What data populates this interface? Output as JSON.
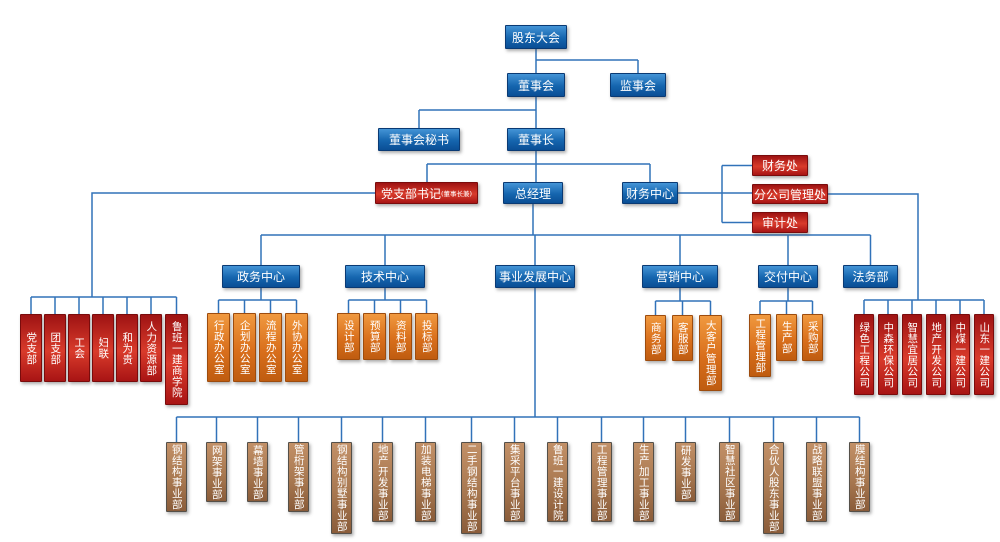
{
  "colors": {
    "background": "#ffffff",
    "connector": "#3172b9",
    "blue_top": "#4494d6",
    "blue_mid": "#1565ae",
    "blue_bottom": "#0a4e95",
    "blue_border": "#0a3a74",
    "red_top": "#9e1313",
    "red_mid": "#d93b2b",
    "red_bottom": "#a81414",
    "red_border": "#7a0c0c",
    "orange_top": "#f0993f",
    "orange_mid": "#d96f1c",
    "orange_bottom": "#bf5c10",
    "orange_border": "#9d4c0e",
    "brown_top": "#c29067",
    "brown_mid": "#a87850",
    "brown_bottom": "#8a5c3a",
    "brown_border": "#555049"
  },
  "nodes": [
    {
      "id": "shareholders-meeting",
      "label": "股东大会",
      "type": "blue",
      "parent": null
    },
    {
      "id": "board-of-directors",
      "label": "董事会",
      "type": "blue",
      "parent": "shareholders-meeting"
    },
    {
      "id": "supervisory-board",
      "label": "监事会",
      "type": "blue",
      "parent": "shareholders-meeting"
    },
    {
      "id": "board-secretary",
      "label": "董事会秘书",
      "type": "blue",
      "parent": "board-of-directors"
    },
    {
      "id": "chairman",
      "label": "董事长",
      "type": "blue",
      "parent": "board-of-directors"
    },
    {
      "id": "party-branch-secretary",
      "label": "党支部书记",
      "suffix": "(董事长兼)",
      "type": "red",
      "parent": "chairman"
    },
    {
      "id": "general-manager",
      "label": "总经理",
      "type": "blue",
      "parent": "chairman"
    },
    {
      "id": "finance-center",
      "label": "财务中心",
      "type": "blue",
      "parent": "chairman"
    },
    {
      "id": "finance-office",
      "label": "财务处",
      "type": "red",
      "parent": "finance-center"
    },
    {
      "id": "branch-company-mgmt-office",
      "label": "分公司管理处",
      "type": "red",
      "parent": "finance-center"
    },
    {
      "id": "audit-office",
      "label": "审计处",
      "type": "red",
      "parent": "finance-center"
    },
    {
      "id": "admin-center",
      "label": "政务中心",
      "type": "blue",
      "parent": "general-manager"
    },
    {
      "id": "tech-center",
      "label": "技术中心",
      "type": "blue",
      "parent": "general-manager"
    },
    {
      "id": "business-dev-center",
      "label": "事业发展中心",
      "type": "blue",
      "parent": "general-manager"
    },
    {
      "id": "marketing-center",
      "label": "营销中心",
      "type": "blue",
      "parent": "general-manager"
    },
    {
      "id": "delivery-center",
      "label": "交付中心",
      "type": "blue",
      "parent": "general-manager"
    },
    {
      "id": "legal-dept",
      "label": "法务部",
      "type": "blue",
      "parent": "general-manager"
    },
    {
      "id": "party-branch",
      "label": "党支部",
      "type": "red",
      "parent": "party-branch-secretary"
    },
    {
      "id": "youth-league-branch",
      "label": "团支部",
      "type": "red",
      "parent": "party-branch-secretary"
    },
    {
      "id": "labor-union",
      "label": "工会",
      "type": "red",
      "parent": "party-branch-secretary"
    },
    {
      "id": "womens-federation",
      "label": "妇联",
      "type": "red",
      "parent": "party-branch-secretary"
    },
    {
      "id": "heweigui-dept",
      "label": "和为贵",
      "type": "red",
      "parent": "party-branch-secretary"
    },
    {
      "id": "hr-dept",
      "label": "人力资源部",
      "type": "red",
      "parent": "party-branch-secretary"
    },
    {
      "id": "luban-business-school",
      "label": "鲁班一建商学院",
      "type": "red",
      "parent": "party-branch-secretary"
    },
    {
      "id": "admin-office",
      "label": "行政办公室",
      "type": "orange",
      "parent": "admin-center"
    },
    {
      "id": "planning-office",
      "label": "企划办公室",
      "type": "orange",
      "parent": "admin-center"
    },
    {
      "id": "process-office",
      "label": "流程办公室",
      "type": "orange",
      "parent": "admin-center"
    },
    {
      "id": "outsourcing-office",
      "label": "外协办公室",
      "type": "orange",
      "parent": "admin-center"
    },
    {
      "id": "design-dept",
      "label": "设计部",
      "type": "orange",
      "parent": "tech-center"
    },
    {
      "id": "budget-dept",
      "label": "预算部",
      "type": "orange",
      "parent": "tech-center"
    },
    {
      "id": "documentation-dept",
      "label": "资料部",
      "type": "orange",
      "parent": "tech-center"
    },
    {
      "id": "bidding-dept",
      "label": "投标部",
      "type": "orange",
      "parent": "tech-center"
    },
    {
      "id": "commerce-dept",
      "label": "商务部",
      "type": "orange",
      "parent": "marketing-center"
    },
    {
      "id": "customer-service-dept",
      "label": "客服部",
      "type": "orange",
      "parent": "marketing-center"
    },
    {
      "id": "key-account-mgmt-dept",
      "label": "大客户管理部",
      "type": "orange",
      "parent": "marketing-center"
    },
    {
      "id": "engineering-mgmt-dept",
      "label": "工程管理部",
      "type": "orange",
      "parent": "delivery-center"
    },
    {
      "id": "production-dept",
      "label": "生产部",
      "type": "orange",
      "parent": "delivery-center"
    },
    {
      "id": "procurement-dept",
      "label": "采购部",
      "type": "orange",
      "parent": "delivery-center"
    },
    {
      "id": "green-engineering-co",
      "label": "绿色工程公司",
      "type": "red",
      "parent": "branch-company-mgmt-office"
    },
    {
      "id": "zhongsen-env-protection-co",
      "label": "中森环保公司",
      "type": "red",
      "parent": "branch-company-mgmt-office"
    },
    {
      "id": "smart-living-co",
      "label": "智慧宜居公司",
      "type": "red",
      "parent": "branch-company-mgmt-office"
    },
    {
      "id": "real-estate-dev-co",
      "label": "地产开发公司",
      "type": "red",
      "parent": "branch-company-mgmt-office"
    },
    {
      "id": "zhongmei-yijian-co",
      "label": "中煤一建公司",
      "type": "red",
      "parent": "branch-company-mgmt-office"
    },
    {
      "id": "shandong-yijian-co",
      "label": "山东一建公司",
      "type": "red",
      "parent": "branch-company-mgmt-office"
    },
    {
      "id": "steel-structure-bu",
      "label": "钢结构事业部",
      "type": "brown",
      "parent": "business-dev-center"
    },
    {
      "id": "grid-frame-bu",
      "label": "网架事业部",
      "type": "brown",
      "parent": "business-dev-center"
    },
    {
      "id": "curtain-wall-bu",
      "label": "幕墙事业部",
      "type": "brown",
      "parent": "business-dev-center"
    },
    {
      "id": "pipe-truss-bu",
      "label": "管桁架事业部",
      "type": "brown",
      "parent": "business-dev-center"
    },
    {
      "id": "steel-villa-bu",
      "label": "钢结构别墅事业部",
      "type": "brown",
      "parent": "business-dev-center"
    },
    {
      "id": "real-estate-dev-bu",
      "label": "地产开发事业部",
      "type": "brown",
      "parent": "business-dev-center"
    },
    {
      "id": "elevator-installation-bu",
      "label": "加装电梯事业部",
      "type": "brown",
      "parent": "business-dev-center"
    },
    {
      "id": "used-steel-structure-bu",
      "label": "二手钢结构事业部",
      "type": "brown",
      "parent": "business-dev-center"
    },
    {
      "id": "central-procurement-platform-bu",
      "label": "集采平台事业部",
      "type": "brown",
      "parent": "business-dev-center"
    },
    {
      "id": "luban-design-institute",
      "label": "鲁班一建设计院",
      "type": "brown",
      "parent": "business-dev-center"
    },
    {
      "id": "engineering-mgmt-bu",
      "label": "工程管理事业部",
      "type": "brown",
      "parent": "business-dev-center"
    },
    {
      "id": "production-processing-bu",
      "label": "生产加工事业部",
      "type": "brown",
      "parent": "business-dev-center"
    },
    {
      "id": "rnd-bu",
      "label": "研发事业部",
      "type": "brown",
      "parent": "business-dev-center"
    },
    {
      "id": "smart-community-bu",
      "label": "智慧社区事业部",
      "type": "brown",
      "parent": "business-dev-center"
    },
    {
      "id": "partner-shareholder-bu",
      "label": "合伙人股东事业部",
      "type": "brown",
      "parent": "business-dev-center"
    },
    {
      "id": "strategic-alliance-bu",
      "label": "战略联盟事业部",
      "type": "brown",
      "parent": "business-dev-center"
    },
    {
      "id": "membrane-structure-bu",
      "label": "膜结构事业部",
      "type": "brown",
      "parent": "business-dev-center"
    }
  ]
}
